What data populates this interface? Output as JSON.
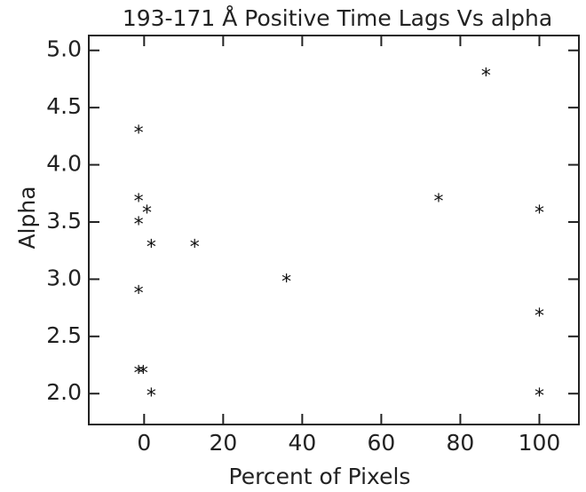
{
  "chart_data": {
    "type": "scatter",
    "title": "193-171 Å Positive Time Lags Vs alpha",
    "x_label": "Percent of Pixels",
    "y_label": "Alpha",
    "color": "#111111",
    "x": [
      -1.4,
      -1.4,
      -1.4,
      0.7,
      1.8,
      12.8,
      -1.4,
      -1.4,
      -0.2,
      1.8,
      36,
      74.5,
      86.5,
      100,
      100,
      100
    ],
    "y": [
      4.3,
      3.7,
      3.5,
      3.6,
      3.3,
      3.3,
      2.9,
      2.2,
      2.2,
      2.0,
      3.0,
      3.7,
      4.8,
      3.6,
      2.7,
      2.0
    ],
    "xlim": [
      -14,
      110
    ],
    "ylim": [
      1.73,
      5.13
    ],
    "xticks": [
      0,
      20,
      40,
      60,
      80,
      100
    ],
    "yticks": [
      {
        "value": 2,
        "label": "2.0"
      },
      2.5,
      {
        "value": 3,
        "label": "3.0"
      },
      3.5,
      {
        "value": 4,
        "label": "4.0"
      },
      4.5,
      {
        "value": 5,
        "label": "5.0"
      }
    ]
  }
}
